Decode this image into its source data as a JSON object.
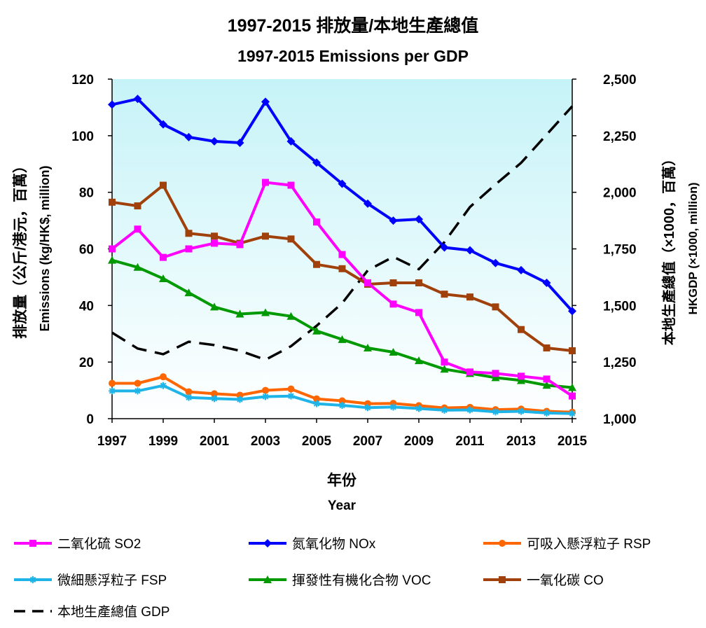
{
  "chart_data": {
    "type": "line",
    "title": "1997-2015 排放量/本地生產總值",
    "subtitle": "1997-2015 Emissions per GDP",
    "xlabel_zh": "年份",
    "xlabel_en": "Year",
    "ylabel_left_zh": "排放量（公斤/港元，百萬）",
    "ylabel_left_en": "Emissions (kg/HK$, million)",
    "ylabel_right_zh": "本地生產總值（×1000，百萬）",
    "ylabel_right_en": "HKGDP (×1000, million)",
    "x_tick_labels": [
      "1997",
      "1999",
      "2001",
      "2003",
      "2005",
      "2007",
      "2009",
      "2011",
      "2013",
      "2015"
    ],
    "y_left_tick_labels": [
      "0",
      "20",
      "40",
      "60",
      "80",
      "100",
      "120"
    ],
    "y_right_tick_labels": [
      "1,000",
      "1,250",
      "1,500",
      "1,750",
      "2,000",
      "2,250",
      "2,500"
    ],
    "ylim_left": [
      0,
      120
    ],
    "ylim_right": [
      1000,
      2500
    ],
    "xlim": [
      1997,
      2015
    ],
    "grid": false,
    "legend_position": "bottom",
    "plot_background": "gradient light cyan to white",
    "x": [
      1997,
      1998,
      1999,
      2000,
      2001,
      2002,
      2003,
      2004,
      2005,
      2006,
      2007,
      2008,
      2009,
      2010,
      2011,
      2012,
      2013,
      2014,
      2015
    ],
    "series": [
      {
        "name": "二氧化硫 SO2",
        "color": "#ff00ff",
        "marker": "square",
        "axis": "left",
        "values": [
          60,
          67,
          57,
          60,
          62,
          61.5,
          83.5,
          82.5,
          69.5,
          58,
          48,
          40.5,
          37.5,
          20,
          16.5,
          16,
          15,
          14,
          8
        ]
      },
      {
        "name": "氮氧化物 NOx",
        "color": "#0000ff",
        "marker": "diamond",
        "axis": "left",
        "values": [
          111,
          113,
          104,
          99.5,
          98,
          97.5,
          112,
          98,
          90.5,
          83,
          76,
          70,
          70.5,
          60.5,
          59.5,
          55,
          52.5,
          48,
          38
        ]
      },
      {
        "name": "可吸入懸浮粒子 RSP",
        "color": "#ff6600",
        "marker": "circle",
        "axis": "left",
        "values": [
          12.5,
          12.5,
          14.8,
          9.5,
          8.8,
          8.3,
          10,
          10.5,
          7,
          6.3,
          5.3,
          5.4,
          4.6,
          3.8,
          4,
          3.2,
          3.4,
          2.6,
          2.3
        ]
      },
      {
        "name": "微細懸浮粒子 FSP",
        "color": "#1fb4e8",
        "marker": "star",
        "axis": "left",
        "values": [
          9.8,
          9.8,
          11.7,
          7.5,
          7.1,
          6.8,
          7.8,
          8,
          5.3,
          4.7,
          3.9,
          4.1,
          3.6,
          3,
          3.1,
          2.4,
          2.6,
          2,
          1.8
        ]
      },
      {
        "name": "揮發性有機化合物 VOC",
        "color": "#009900",
        "marker": "triangle",
        "axis": "left",
        "values": [
          56,
          53.5,
          49.5,
          44.5,
          39.5,
          37,
          37.5,
          36.2,
          31,
          28,
          25,
          23.5,
          20.5,
          17.5,
          16,
          14.5,
          13.5,
          11.8,
          11
        ]
      },
      {
        "name": "一氧化碳 CO",
        "color": "#a0400a",
        "marker": "square",
        "axis": "left",
        "values": [
          76.5,
          75.2,
          82.5,
          65.5,
          64.5,
          62,
          64.5,
          63.5,
          54.5,
          53,
          47.5,
          48,
          48,
          44,
          43,
          39.5,
          31.5,
          25,
          24
        ]
      },
      {
        "name": "本地生產總值 GDP",
        "color": "#000000",
        "marker": "none",
        "dash": true,
        "axis": "right",
        "values": [
          1380,
          1310,
          1285,
          1340,
          1325,
          1300,
          1260,
          1320,
          1410,
          1510,
          1655,
          1715,
          1660,
          1780,
          1935,
          2035,
          2130,
          2255,
          2380
        ]
      }
    ]
  }
}
